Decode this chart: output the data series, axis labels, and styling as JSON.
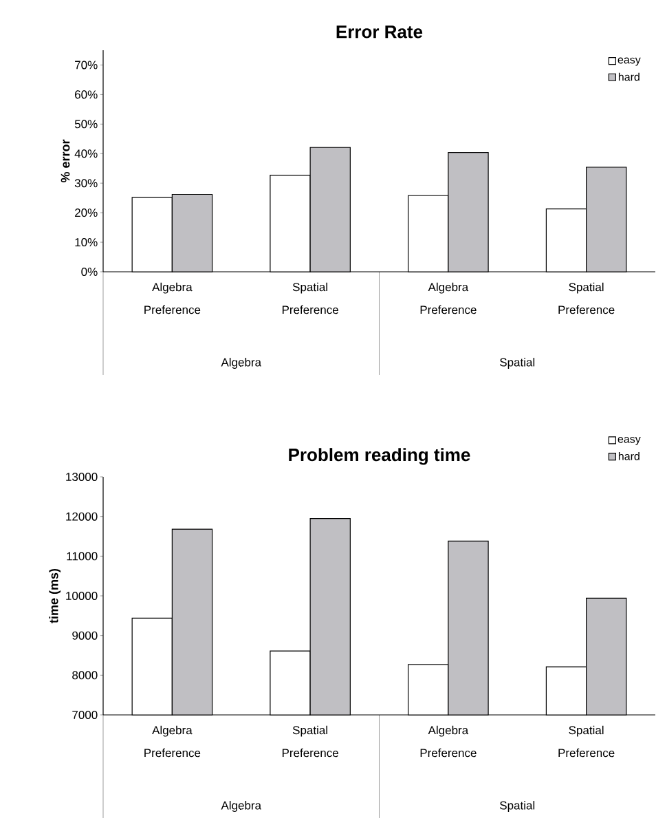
{
  "chart_data": [
    {
      "type": "bar",
      "title": "Error Rate",
      "ylabel": "% error",
      "categories": [
        "Algebra Preference",
        "Spatial Preference",
        "Algebra Preference",
        "Spatial Preference"
      ],
      "annotations": [
        "Algebra",
        "Spatial"
      ],
      "series": [
        {
          "name": "easy",
          "color": "#ffffff",
          "values": [
            25.2,
            32.7,
            25.8,
            21.3
          ]
        },
        {
          "name": "hard",
          "color": "#c0bfc3",
          "values": [
            26.2,
            42.1,
            40.4,
            35.4
          ]
        }
      ],
      "ylim": [
        0,
        75
      ],
      "yticks": [
        {
          "value": 0,
          "label": "0%"
        },
        {
          "value": 10,
          "label": "10%"
        },
        {
          "value": 20,
          "label": "20%"
        },
        {
          "value": 30,
          "label": "30%"
        },
        {
          "value": 40,
          "label": "40%"
        },
        {
          "value": 50,
          "label": "50%"
        },
        {
          "value": 60,
          "label": "60%"
        },
        {
          "value": 70,
          "label": "70%"
        }
      ],
      "legend": "top right"
    },
    {
      "type": "bar",
      "title": "Problem reading time",
      "ylabel": "time (ms)",
      "categories": [
        "Algebra Preference",
        "Spatial Preference",
        "Algebra Preference",
        "Spatial Preference"
      ],
      "annotations": [
        "Algebra",
        "Spatial"
      ],
      "series": [
        {
          "name": "easy",
          "color": "#ffffff",
          "values": [
            9440,
            8610,
            8270,
            8210
          ]
        },
        {
          "name": "hard",
          "color": "#c0bfc3",
          "values": [
            11680,
            11950,
            11380,
            9940
          ]
        }
      ],
      "ylim": [
        7000,
        13000
      ],
      "yticks": [
        7000,
        8000,
        9000,
        10000,
        11000,
        12000,
        13000
      ],
      "legend": "top right"
    }
  ]
}
